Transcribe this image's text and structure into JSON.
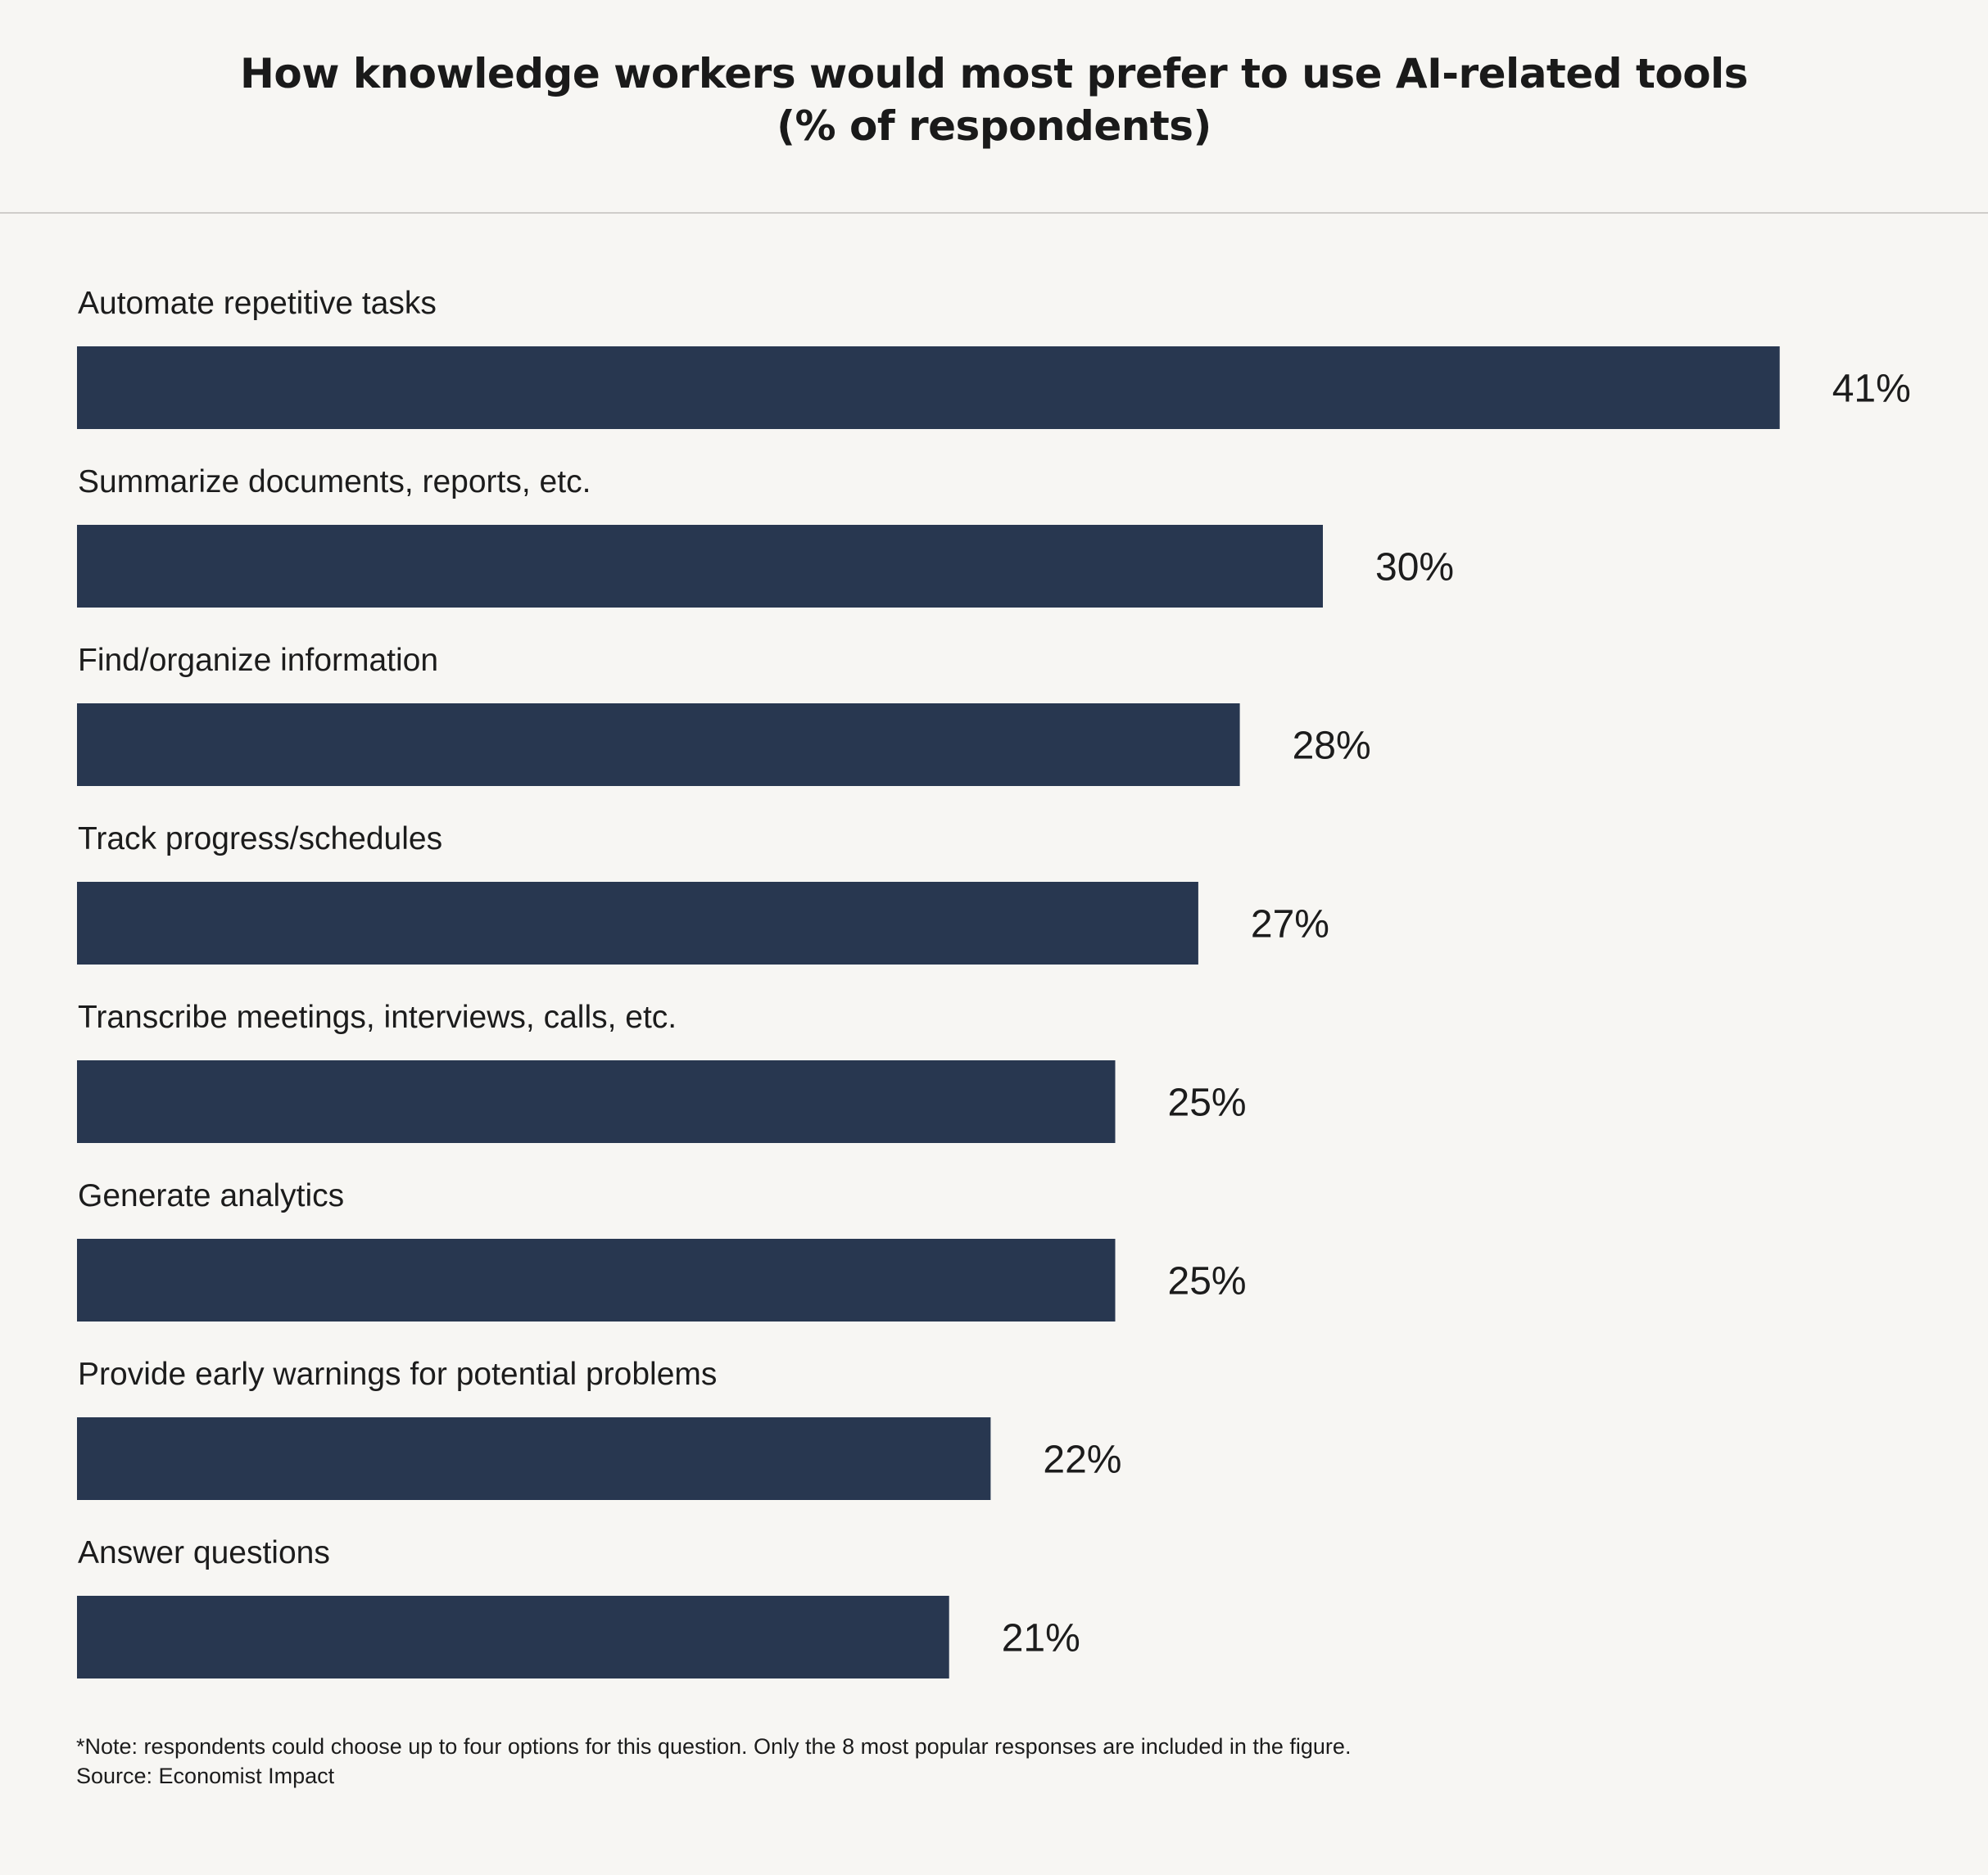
{
  "title": {
    "line1": "How knowledge workers would most prefer to use AI-related tools",
    "line2": "(% of respondents)"
  },
  "colors": {
    "bar": "#283750",
    "background": "#f7f6f3",
    "text": "#1c1c1c"
  },
  "chart_data": {
    "type": "bar",
    "orientation": "horizontal",
    "categories": [
      "Automate repetitive tasks",
      "Summarize documents, reports, etc.",
      "Find/organize information",
      "Track progress/schedules",
      "Transcribe meetings, interviews, calls, etc.",
      "Generate analytics",
      "Provide early warnings for potential problems",
      "Answer questions"
    ],
    "values": [
      41,
      30,
      28,
      27,
      25,
      25,
      22,
      21
    ],
    "value_labels": [
      "41%",
      "30%",
      "28%",
      "27%",
      "25%",
      "25%",
      "22%",
      "21%"
    ],
    "unit": "%",
    "grid": false,
    "legend": "none"
  },
  "footnote": {
    "note": "*Note: respondents could choose up to four options for this question. Only the 8 most popular responses are included in the figure.",
    "source": "Source: Economist Impact"
  }
}
